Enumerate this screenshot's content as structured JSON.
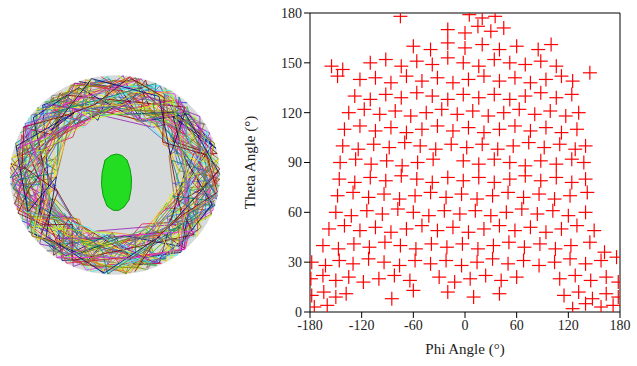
{
  "chart_data": {
    "type": "scatter",
    "x_label": "Phi Angle (°)",
    "y_label": "Theta Angle (°)",
    "color": "#ff0000",
    "marker": "plus",
    "xlim": [
      -180,
      180
    ],
    "xticks": [
      -180,
      -120,
      -60,
      0,
      60,
      120,
      180
    ],
    "ylim": [
      0,
      180
    ],
    "yticks": [
      0,
      30,
      60,
      90,
      120,
      150,
      180
    ],
    "grid": false,
    "x": [
      -75,
      5,
      20,
      35,
      -20,
      0,
      15,
      30,
      45,
      -60,
      -40,
      -20,
      0,
      20,
      40,
      60,
      85,
      100,
      -110,
      -92,
      -74,
      -56,
      -38,
      -20,
      -2,
      16,
      34,
      52,
      70,
      88,
      106,
      145,
      -155,
      -148,
      -142,
      -122,
      -104,
      -86,
      -68,
      -50,
      -32,
      -14,
      4,
      22,
      40,
      58,
      76,
      94,
      112,
      125,
      -128,
      -110,
      -92,
      -74,
      -56,
      -38,
      -20,
      -2,
      16,
      34,
      52,
      70,
      88,
      106,
      124,
      -135,
      -117,
      -99,
      -81,
      -63,
      -45,
      -27,
      -9,
      9,
      27,
      45,
      63,
      81,
      99,
      117,
      132,
      -140,
      -122,
      -104,
      -86,
      -68,
      -50,
      -32,
      -14,
      4,
      22,
      40,
      58,
      76,
      94,
      112,
      130,
      -142,
      -124,
      -106,
      -88,
      -70,
      -52,
      -34,
      -16,
      2,
      20,
      38,
      56,
      74,
      92,
      110,
      128,
      140,
      -145,
      -127,
      -109,
      -91,
      -73,
      -55,
      -37,
      -2,
      16,
      34,
      52,
      70,
      88,
      106,
      124,
      138,
      -146,
      -128,
      -110,
      -92,
      -74,
      -56,
      -38,
      -20,
      -2,
      16,
      34,
      52,
      70,
      88,
      106,
      124,
      140,
      -148,
      -130,
      -112,
      -94,
      -76,
      -58,
      -40,
      -22,
      -4,
      14,
      32,
      50,
      68,
      86,
      104,
      122,
      142,
      -150,
      -132,
      -114,
      -96,
      -78,
      -60,
      -42,
      -24,
      -6,
      12,
      30,
      48,
      66,
      84,
      102,
      120,
      140,
      -158,
      -140,
      -122,
      -104,
      -86,
      -68,
      -50,
      -32,
      -14,
      4,
      22,
      40,
      58,
      76,
      94,
      112,
      130,
      150,
      -165,
      -147,
      -129,
      -111,
      -93,
      -75,
      -57,
      -39,
      -21,
      -3,
      15,
      33,
      51,
      69,
      87,
      105,
      123,
      145,
      162,
      -178,
      -162,
      -146,
      -130,
      -112,
      -94,
      -76,
      -58,
      -40,
      -22,
      -4,
      14,
      32,
      50,
      68,
      86,
      104,
      122,
      140,
      158,
      176,
      -179,
      -165,
      -150,
      -135,
      -118,
      -100,
      -82,
      -64,
      -30,
      -12,
      6,
      24,
      42,
      60,
      110,
      128,
      146,
      164,
      178,
      -178,
      -164,
      -150,
      -138,
      -85,
      -60,
      -20,
      10,
      40,
      115,
      132,
      148,
      164,
      178,
      -175,
      -160,
      125,
      140,
      158,
      172
    ],
    "values": [
      178,
      179,
      177,
      178,
      170,
      168,
      172,
      169,
      171,
      160,
      158,
      162,
      159,
      161,
      158,
      160,
      158,
      161,
      150,
      152,
      148,
      151,
      149,
      153,
      150,
      148,
      152,
      150,
      149,
      151,
      148,
      144,
      148,
      142,
      146,
      140,
      141,
      138,
      142,
      139,
      141,
      138,
      140,
      142,
      139,
      141,
      138,
      140,
      142,
      139,
      130,
      128,
      131,
      129,
      132,
      130,
      128,
      131,
      129,
      131,
      128,
      130,
      132,
      129,
      131,
      120,
      122,
      119,
      121,
      118,
      120,
      122,
      119,
      121,
      118,
      120,
      122,
      119,
      121,
      118,
      120,
      110,
      112,
      109,
      111,
      108,
      110,
      112,
      109,
      111,
      108,
      110,
      112,
      109,
      111,
      108,
      110,
      100,
      98,
      101,
      99,
      102,
      100,
      98,
      101,
      99,
      101,
      98,
      100,
      102,
      99,
      101,
      98,
      100,
      90,
      92,
      89,
      91,
      88,
      90,
      92,
      91,
      89,
      92,
      90,
      88,
      91,
      89,
      92,
      90,
      80,
      78,
      81,
      79,
      82,
      80,
      78,
      81,
      79,
      81,
      78,
      80,
      82,
      79,
      81,
      78,
      80,
      70,
      72,
      69,
      71,
      68,
      70,
      72,
      69,
      71,
      68,
      70,
      72,
      69,
      71,
      68,
      70,
      72,
      60,
      58,
      61,
      59,
      62,
      60,
      58,
      61,
      59,
      61,
      58,
      60,
      62,
      59,
      61,
      58,
      60,
      50,
      52,
      49,
      51,
      48,
      50,
      52,
      49,
      51,
      48,
      50,
      52,
      49,
      51,
      48,
      50,
      52,
      49,
      40,
      38,
      41,
      39,
      42,
      40,
      38,
      41,
      39,
      41,
      38,
      40,
      42,
      39,
      41,
      38,
      40,
      42,
      36,
      30,
      28,
      31,
      29,
      32,
      30,
      28,
      31,
      29,
      31,
      28,
      30,
      32,
      29,
      31,
      28,
      30,
      32,
      29,
      31,
      33,
      20,
      22,
      19,
      21,
      18,
      20,
      22,
      19,
      21,
      18,
      20,
      22,
      19,
      21,
      20,
      22,
      19,
      21,
      18,
      10,
      12,
      9,
      11,
      8,
      13,
      12,
      9,
      11,
      10,
      12,
      8,
      11,
      9,
      3,
      4,
      2,
      5,
      3,
      4
    ]
  }
}
